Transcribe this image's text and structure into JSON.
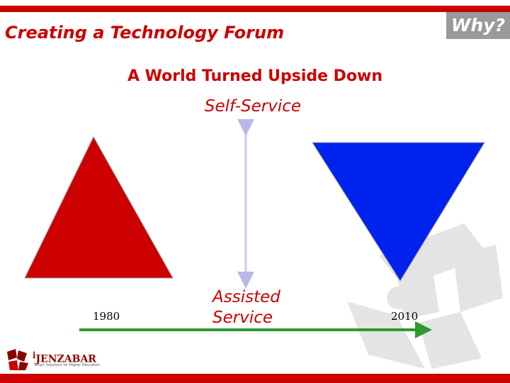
{
  "header": {
    "title": "Creating a Technology Forum",
    "badge": "Why?"
  },
  "diagram": {
    "subtitle": "A World Turned Upside Down",
    "top_label": "Self-Service",
    "bottom_label_line1": "Assisted",
    "bottom_label_line2": "Service",
    "year_start": "1980",
    "year_end": "2010"
  },
  "logo": {
    "name": "JENZABAR",
    "prefix": "i",
    "tagline": "Smart Solutions for Higher Education"
  },
  "colors": {
    "accent_red": "#cc0000",
    "triangle_red": "#cc0000",
    "triangle_blue": "#0022ee",
    "timeline_green": "#2e9a2e",
    "vertical_arrow": "#c8c8f0",
    "badge_gray": "#9a9a9a"
  }
}
